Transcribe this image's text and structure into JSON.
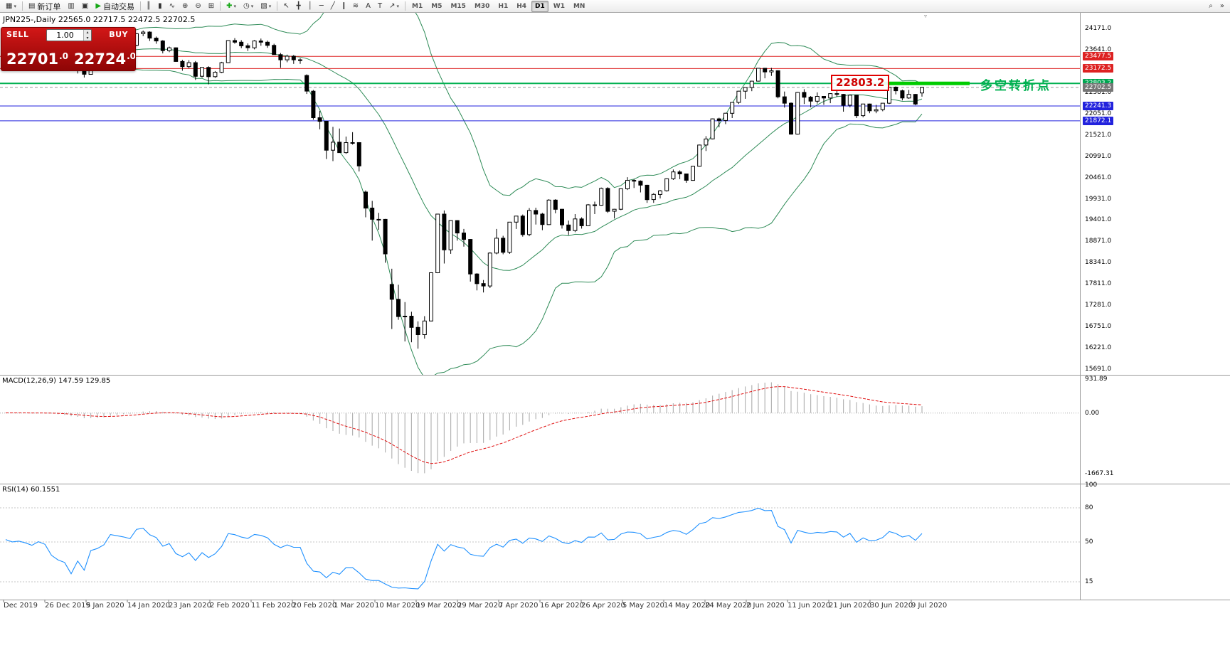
{
  "colors": {
    "bull": "#ffffff",
    "bear": "#000000",
    "bollinger": "#2e8b57",
    "macd_signal": "#e01010",
    "macd_histogram": "#b4b4b4",
    "rsi_line": "#1e90ff",
    "accent_green": "#00b050",
    "accent_red": "#dd2222",
    "accent_blue": "#2222dd"
  },
  "icons": {
    "caret": "▾",
    "lot_up": "▴",
    "lot_down": "▾",
    "shift_marker": "▿"
  },
  "toolbar": {
    "items": [
      {
        "name": "new-chart-button",
        "glyph": "▦",
        "caret": true
      },
      {
        "type": "sep"
      },
      {
        "name": "new-order-button",
        "glyph": "▤",
        "label": "新订单"
      },
      {
        "name": "market-watch-button",
        "glyph": "▥"
      },
      {
        "name": "data-window-button",
        "glyph": "▣"
      },
      {
        "name": "auto-trading-button",
        "glyph": "▶",
        "glyph_color": "#18a818",
        "label": "自动交易"
      },
      {
        "type": "sep"
      },
      {
        "name": "bar-chart-button",
        "glyph": "║"
      },
      {
        "name": "candlestick-chart-button",
        "glyph": "▮"
      },
      {
        "name": "line-chart-button",
        "glyph": "∿"
      },
      {
        "name": "zoom-in-button",
        "glyph": "⊕"
      },
      {
        "name": "zoom-out-button",
        "glyph": "⊖"
      },
      {
        "name": "tile-windows-button",
        "glyph": "⊞"
      },
      {
        "type": "sep"
      },
      {
        "name": "indicators-button",
        "glyph": "✚",
        "glyph_color": "#18a818",
        "caret": true
      },
      {
        "name": "periods-button",
        "glyph": "◷",
        "caret": true
      },
      {
        "name": "templates-button",
        "glyph": "▧",
        "caret": true
      },
      {
        "type": "sep"
      },
      {
        "name": "cursor-button",
        "glyph": "↖"
      },
      {
        "name": "crosshair-button",
        "glyph": "╋"
      },
      {
        "name": "vertical-line-button",
        "glyph": "│"
      },
      {
        "name": "horizontal-line-button",
        "glyph": "─"
      },
      {
        "name": "trendline-button",
        "glyph": "╱"
      },
      {
        "name": "channel-button",
        "glyph": "∥"
      },
      {
        "name": "fibonacci-button",
        "glyph": "≋"
      },
      {
        "name": "text-button",
        "glyph": "A"
      },
      {
        "name": "text-label-button",
        "glyph": "T"
      },
      {
        "name": "arrows-button",
        "glyph": "↗",
        "caret": true
      },
      {
        "type": "sep"
      },
      {
        "type": "tf",
        "name": "timeframe-M1",
        "label": "M1"
      },
      {
        "type": "tf",
        "name": "timeframe-M5",
        "label": "M5"
      },
      {
        "type": "tf",
        "name": "timeframe-M15",
        "label": "M15"
      },
      {
        "type": "tf",
        "name": "timeframe-M30",
        "label": "M30"
      },
      {
        "type": "tf",
        "name": "timeframe-H1",
        "label": "H1"
      },
      {
        "type": "tf",
        "name": "timeframe-H4",
        "label": "H4"
      },
      {
        "type": "tf",
        "name": "timeframe-D1",
        "label": "D1",
        "active": true
      },
      {
        "type": "tf",
        "name": "timeframe-W1",
        "label": "W1"
      },
      {
        "type": "tf",
        "name": "timeframe-MN",
        "label": "MN"
      },
      {
        "name": "search-button",
        "glyph": "⌕",
        "right": true
      },
      {
        "name": "toolbar-overflow-button",
        "glyph": "»"
      }
    ]
  },
  "chart": {
    "title": "JPN225-,Daily 22565.0 22717.5 22472.5 22702.5",
    "symbol": "JPN225-",
    "period": "Daily"
  },
  "trade_widget": {
    "sell_label": "SELL",
    "buy_label": "BUY",
    "lot": "1.00",
    "bid_main": "22701",
    "bid_dec": ".0",
    "ask_main": "22724",
    "ask_dec": ".0"
  },
  "annotations": {
    "price_box": "22803.2",
    "cn_text": "多空转折点"
  },
  "price_axis": {
    "ticks": [
      24171.0,
      23641.0,
      23111.0,
      22581.0,
      22051.0,
      21521.0,
      20991.0,
      20461.0,
      19931.0,
      19401.0,
      18871.0,
      18341.0,
      17811.0,
      17281.0,
      16751.0,
      16221.0,
      15691.0
    ],
    "badges": [
      {
        "text": "23477.5",
        "price": 23477.5,
        "bg": "#dd2222"
      },
      {
        "text": "23172.5",
        "price": 23172.5,
        "bg": "#dd2222"
      },
      {
        "text": "22803.2",
        "price": 22803.2,
        "bg": "#00a651"
      },
      {
        "text": "22702.5",
        "price": 22702.5,
        "bg": "#767676"
      },
      {
        "text": "22241.3",
        "price": 22241.3,
        "bg": "#2222dd"
      },
      {
        "text": "21872.1",
        "price": 21872.1,
        "bg": "#2222dd"
      }
    ]
  },
  "macd_panel": {
    "label": "MACD(12,26,9) 147.59 129.85",
    "max": 931.89,
    "min": -1667.31,
    "ticks": [
      "931.89",
      "0.00",
      "-1667.31"
    ]
  },
  "rsi_panel": {
    "label": "RSI(14) 60.1551",
    "ticks": [
      100,
      80,
      50,
      15
    ],
    "levels": [
      80,
      50,
      15
    ]
  },
  "date_axis": {
    "labels": [
      "Dec 2019",
      "26 Dec 2019",
      "5 Jan 2020",
      "14 Jan 2020",
      "23 Jan 2020",
      "2 Feb 2020",
      "11 Feb 2020",
      "20 Feb 2020",
      "1 Mar 2020",
      "10 Mar 2020",
      "19 Mar 2020",
      "29 Mar 2020",
      "7 Apr 2020",
      "16 Apr 2020",
      "26 Apr 2020",
      "5 May 2020",
      "14 May 2020",
      "24 May 2020",
      "2 Jun 2020",
      "11 Jun 2020",
      "21 Jun 2020",
      "30 Jun 2020",
      "9 Jul 2020"
    ]
  },
  "chart_data": {
    "type": "candlestick",
    "symbol": "JPN225-",
    "timeframe": "Daily",
    "display_ohlc": {
      "open": 22565.0,
      "high": 22717.5,
      "low": 22472.5,
      "close": 22702.5
    },
    "price_range": [
      15691.0,
      24171.0
    ],
    "current_price": 22702.5,
    "hlines": [
      {
        "price": 23477.5,
        "color": "#dd2222",
        "width": 1
      },
      {
        "price": 23172.5,
        "color": "#dd2222",
        "width": 1
      },
      {
        "price": 22803.2,
        "color": "#00b050",
        "width": 2
      },
      {
        "price": 22241.3,
        "color": "#2222dd",
        "width": 1
      },
      {
        "price": 21872.1,
        "color": "#2222dd",
        "width": 1
      }
    ],
    "indicators": {
      "bollinger": {
        "period": 20,
        "deviation": 2
      },
      "macd": {
        "fast": 12,
        "slow": 26,
        "signal": 9,
        "values": [
          147.59,
          129.85
        ]
      },
      "rsi": {
        "period": 14,
        "value": 60.1551
      }
    },
    "candles": [
      [
        23830,
        23900,
        23780,
        23860
      ],
      [
        23860,
        23880,
        23790,
        23830
      ],
      [
        23830,
        23870,
        23780,
        23840
      ],
      [
        23840,
        23860,
        23790,
        23820
      ],
      [
        23820,
        23850,
        23760,
        23790
      ],
      [
        23790,
        23840,
        23750,
        23830
      ],
      [
        23830,
        23860,
        23770,
        23800
      ],
      [
        23800,
        23820,
        23610,
        23650
      ],
      [
        23650,
        23690,
        23450,
        23570
      ],
      [
        23570,
        23620,
        23480,
        23520
      ],
      [
        23520,
        23560,
        23150,
        23200
      ],
      [
        23200,
        23390,
        23050,
        23360
      ],
      [
        23360,
        23420,
        22950,
        23030
      ],
      [
        23030,
        23440,
        23020,
        23410
      ],
      [
        23410,
        23480,
        23350,
        23460
      ],
      [
        23460,
        23590,
        23430,
        23550
      ],
      [
        23550,
        23880,
        23540,
        23850
      ],
      [
        23850,
        23910,
        23760,
        23820
      ],
      [
        23820,
        23860,
        23720,
        23790
      ],
      [
        23790,
        23830,
        23680,
        23750
      ],
      [
        23750,
        24050,
        23730,
        24040
      ],
      [
        24040,
        24120,
        23980,
        24080
      ],
      [
        24080,
        24100,
        23860,
        23930
      ],
      [
        23930,
        23970,
        23790,
        23860
      ],
      [
        23860,
        23880,
        23550,
        23620
      ],
      [
        23620,
        23720,
        23580,
        23690
      ],
      [
        23690,
        23700,
        23340,
        23350
      ],
      [
        23350,
        23390,
        23120,
        23220
      ],
      [
        23220,
        23380,
        23180,
        23320
      ],
      [
        23320,
        23360,
        22890,
        22980
      ],
      [
        22980,
        23210,
        22950,
        23200
      ],
      [
        23200,
        23230,
        22780,
        22970
      ],
      [
        22970,
        23110,
        22940,
        23080
      ],
      [
        23080,
        23340,
        23060,
        23320
      ],
      [
        23320,
        23880,
        23310,
        23870
      ],
      [
        23870,
        23930,
        23790,
        23830
      ],
      [
        23830,
        23880,
        23680,
        23740
      ],
      [
        23740,
        23800,
        23610,
        23690
      ],
      [
        23690,
        23880,
        23650,
        23860
      ],
      [
        23860,
        23920,
        23740,
        23830
      ],
      [
        23830,
        23870,
        23690,
        23750
      ],
      [
        23750,
        23790,
        23520,
        23520
      ],
      [
        23520,
        23560,
        23190,
        23390
      ],
      [
        23390,
        23520,
        23330,
        23480
      ],
      [
        23480,
        23510,
        23290,
        23390
      ],
      [
        23390,
        23430,
        23290,
        23390
      ],
      [
        23000,
        23030,
        22540,
        22610
      ],
      [
        22610,
        22640,
        21900,
        21950
      ],
      [
        21950,
        22120,
        21660,
        21860
      ],
      [
        21860,
        21870,
        20920,
        21140
      ],
      [
        21140,
        21720,
        20870,
        21340
      ],
      [
        21340,
        21680,
        21080,
        21080
      ],
      [
        21080,
        21480,
        21050,
        21330
      ],
      [
        21330,
        21590,
        21280,
        21330
      ],
      [
        21330,
        21340,
        20610,
        20750
      ],
      [
        20100,
        20140,
        19470,
        19700
      ],
      [
        19700,
        19880,
        18890,
        19420
      ],
      [
        19420,
        19580,
        19160,
        19420
      ],
      [
        19420,
        19430,
        18340,
        18560
      ],
      [
        17800,
        18190,
        16690,
        17430
      ],
      [
        17430,
        17790,
        16920,
        17000
      ],
      [
        17000,
        17360,
        16380,
        17010
      ],
      [
        17010,
        17120,
        16360,
        16730
      ],
      [
        16730,
        16880,
        16200,
        16550
      ],
      [
        16550,
        17010,
        16450,
        16890
      ],
      [
        16890,
        18100,
        16880,
        18090
      ],
      [
        18090,
        19560,
        18080,
        19550
      ],
      [
        19550,
        19640,
        18320,
        18660
      ],
      [
        18660,
        19390,
        18560,
        19390
      ],
      [
        19390,
        19400,
        18890,
        19080
      ],
      [
        19080,
        19180,
        18740,
        18920
      ],
      [
        18920,
        18930,
        17870,
        18060
      ],
      [
        18060,
        18080,
        17650,
        17820
      ],
      [
        17820,
        17910,
        17600,
        17760
      ],
      [
        17760,
        18600,
        17710,
        18580
      ],
      [
        18580,
        19180,
        18550,
        18950
      ],
      [
        18950,
        19010,
        18550,
        18600
      ],
      [
        18600,
        19350,
        18560,
        19350
      ],
      [
        19350,
        19500,
        19180,
        19500
      ],
      [
        19500,
        19540,
        18990,
        19040
      ],
      [
        19040,
        19700,
        19000,
        19640
      ],
      [
        19640,
        19710,
        19290,
        19550
      ],
      [
        19550,
        19580,
        19150,
        19290
      ],
      [
        19290,
        19920,
        19280,
        19900
      ],
      [
        19900,
        19920,
        19570,
        19670
      ],
      [
        19670,
        19680,
        19190,
        19280
      ],
      [
        19280,
        19390,
        19030,
        19140
      ],
      [
        19140,
        19550,
        19100,
        19430
      ],
      [
        19430,
        19470,
        19190,
        19260
      ],
      [
        19260,
        19800,
        19250,
        19780
      ],
      [
        19780,
        19860,
        19550,
        19770
      ],
      [
        19770,
        20210,
        19760,
        20190
      ],
      [
        20190,
        20220,
        19580,
        19620
      ],
      [
        19620,
        19680,
        19440,
        19670
      ],
      [
        19670,
        20190,
        19650,
        20180
      ],
      [
        20180,
        20470,
        20150,
        20390
      ],
      [
        20390,
        20420,
        20200,
        20370
      ],
      [
        20370,
        20390,
        20090,
        20270
      ],
      [
        20270,
        20280,
        19830,
        19910
      ],
      [
        19910,
        20070,
        19830,
        20040
      ],
      [
        20040,
        20150,
        19940,
        20130
      ],
      [
        20130,
        20440,
        20110,
        20430
      ],
      [
        20430,
        20660,
        20400,
        20600
      ],
      [
        20600,
        20640,
        20420,
        20550
      ],
      [
        20550,
        20560,
        20330,
        20390
      ],
      [
        20390,
        20750,
        20380,
        20740
      ],
      [
        20740,
        21280,
        20730,
        21270
      ],
      [
        21270,
        21490,
        21120,
        21420
      ],
      [
        21420,
        21930,
        21410,
        21920
      ],
      [
        21920,
        21950,
        21710,
        21880
      ],
      [
        21880,
        22070,
        21790,
        22060
      ],
      [
        22060,
        22330,
        21940,
        22330
      ],
      [
        22330,
        22620,
        22290,
        22610
      ],
      [
        22610,
        22700,
        22420,
        22700
      ],
      [
        22700,
        22870,
        22610,
        22860
      ],
      [
        22860,
        23180,
        22850,
        23180
      ],
      [
        23180,
        23190,
        22930,
        23090
      ],
      [
        23090,
        23190,
        22990,
        23120
      ],
      [
        23120,
        23130,
        22430,
        22470
      ],
      [
        22470,
        22600,
        22200,
        22310
      ],
      [
        22310,
        22330,
        21530,
        21540
      ],
      [
        21540,
        22590,
        21530,
        22580
      ],
      [
        22580,
        22660,
        22290,
        22460
      ],
      [
        22460,
        22490,
        22210,
        22360
      ],
      [
        22360,
        22580,
        22300,
        22480
      ],
      [
        22480,
        22490,
        22270,
        22440
      ],
      [
        22440,
        22560,
        22310,
        22550
      ],
      [
        22550,
        22670,
        22470,
        22530
      ],
      [
        22530,
        22540,
        22100,
        22260
      ],
      [
        22260,
        22520,
        22210,
        22510
      ],
      [
        22510,
        22515,
        21940,
        22000
      ],
      [
        22000,
        22290,
        21960,
        22290
      ],
      [
        22290,
        22300,
        22060,
        22120
      ],
      [
        22120,
        22270,
        22060,
        22150
      ],
      [
        22150,
        22310,
        22110,
        22310
      ],
      [
        22310,
        22720,
        22290,
        22710
      ],
      [
        22710,
        22730,
        22530,
        22620
      ],
      [
        22620,
        22650,
        22380,
        22440
      ],
      [
        22440,
        22640,
        22420,
        22530
      ],
      [
        22530,
        22540,
        22260,
        22290
      ],
      [
        22565,
        22717.5,
        22472.5,
        22702.5
      ]
    ]
  }
}
